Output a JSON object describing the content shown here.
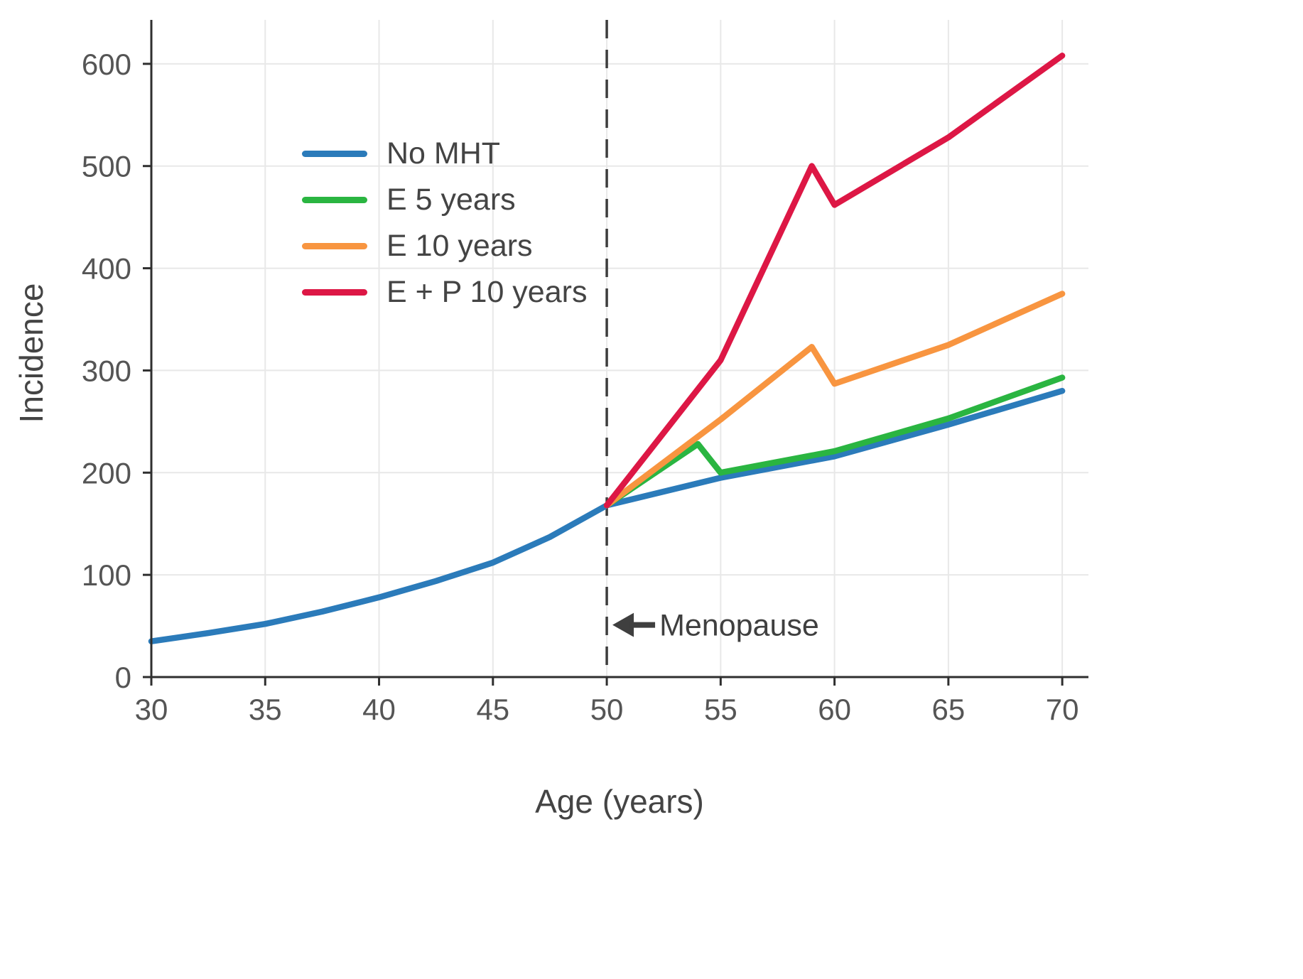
{
  "chart_data": {
    "type": "line",
    "title": "",
    "xlabel": "Age (years)",
    "ylabel": "Incidence",
    "xlim": [
      30,
      71.15
    ],
    "ylim": [
      0,
      643
    ],
    "xticks": [
      30,
      35,
      40,
      45,
      50,
      55,
      60,
      65,
      70
    ],
    "yticks": [
      0,
      100,
      200,
      300,
      400,
      500,
      600
    ],
    "grid": true,
    "legend_position": "upper-left-inside",
    "vline": {
      "x": 50,
      "style": "dashed",
      "color": "#3d3d3d"
    },
    "annotations": [
      {
        "label": "Menopause",
        "x": 50,
        "y": 51,
        "arrow": "left"
      }
    ],
    "colors": {
      "grid": "#e8e8e8",
      "spine": "#2f2f2f",
      "tick_text": "#555555",
      "annotation_text": "#3f3f3f"
    },
    "series": [
      {
        "name": "No MHT",
        "slug": "no-mht",
        "color": "#2b7bba",
        "points": [
          [
            30,
            35
          ],
          [
            32.5,
            43
          ],
          [
            35,
            52
          ],
          [
            37.5,
            64
          ],
          [
            40,
            78
          ],
          [
            42.5,
            94
          ],
          [
            45,
            112
          ],
          [
            47.5,
            137
          ],
          [
            50,
            168
          ],
          [
            55,
            195
          ],
          [
            60,
            216
          ],
          [
            65,
            247
          ],
          [
            70,
            280
          ]
        ]
      },
      {
        "name": "E 5 years",
        "slug": "e-5-years",
        "color": "#2ab541",
        "points": [
          [
            50,
            168
          ],
          [
            54,
            228
          ],
          [
            55,
            200
          ],
          [
            60,
            221
          ],
          [
            65,
            253
          ],
          [
            70,
            293
          ]
        ]
      },
      {
        "name": "E 10 years",
        "slug": "e-10-years",
        "color": "#f89540",
        "points": [
          [
            50,
            168
          ],
          [
            55,
            252
          ],
          [
            59,
            323
          ],
          [
            60,
            287
          ],
          [
            65,
            325
          ],
          [
            70,
            375
          ]
        ]
      },
      {
        "name": "E + P 10 years",
        "slug": "e-p-10-years",
        "color": "#dd1745",
        "points": [
          [
            50,
            168
          ],
          [
            55,
            310
          ],
          [
            59,
            500
          ],
          [
            60,
            462
          ],
          [
            65,
            528
          ],
          [
            70,
            608
          ]
        ]
      }
    ]
  }
}
